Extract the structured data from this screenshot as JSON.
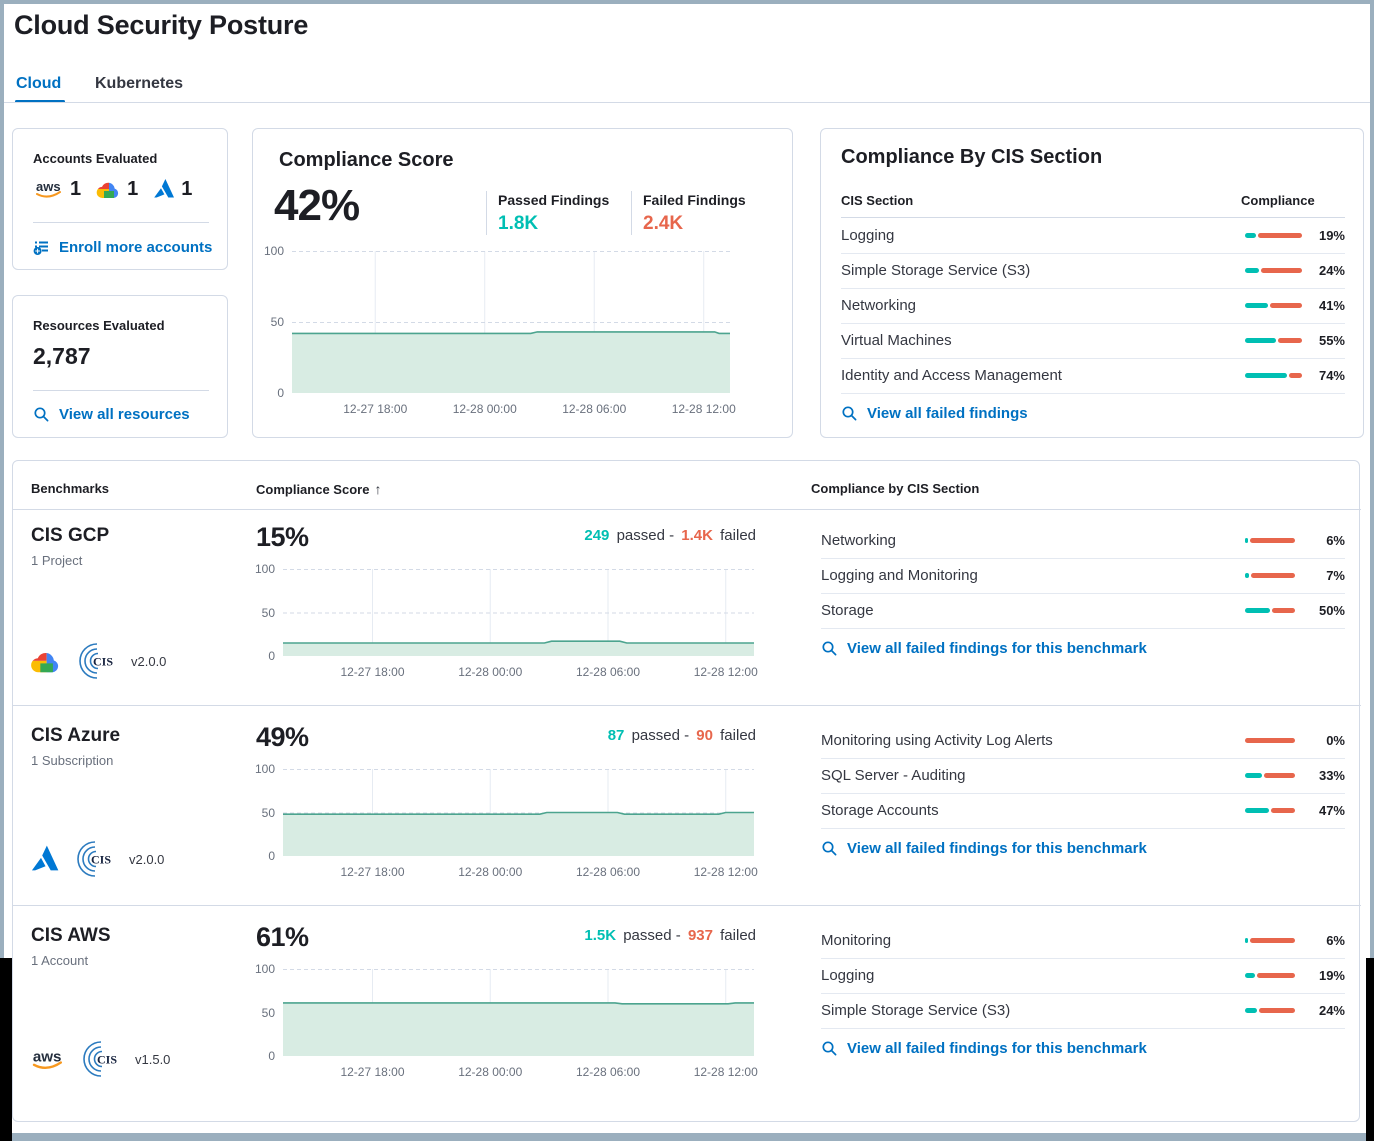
{
  "page": {
    "title": "Cloud Security Posture"
  },
  "tabs": {
    "cloud": "Cloud",
    "kubernetes": "Kubernetes"
  },
  "accounts_card": {
    "title": "Accounts Evaluated",
    "aws_count": "1",
    "gcp_count": "1",
    "azure_count": "1",
    "enroll_link": "Enroll more accounts"
  },
  "resources_card": {
    "title": "Resources Evaluated",
    "count": "2,787",
    "view_link": "View all resources"
  },
  "score_card": {
    "title": "Compliance Score",
    "score": "42%",
    "passed_label": "Passed Findings",
    "passed_value": "1.8K",
    "failed_label": "Failed Findings",
    "failed_value": "2.4K"
  },
  "cis_card": {
    "title": "Compliance By CIS Section",
    "col_section": "CIS Section",
    "col_compliance": "Compliance",
    "rows": [
      {
        "label": "Logging",
        "pct": 19,
        "value": "19%"
      },
      {
        "label": "Simple Storage Service (S3)",
        "pct": 24,
        "value": "24%"
      },
      {
        "label": "Networking",
        "pct": 41,
        "value": "41%"
      },
      {
        "label": "Virtual Machines",
        "pct": 55,
        "value": "55%"
      },
      {
        "label": "Identity and Access Management",
        "pct": 74,
        "value": "74%"
      }
    ],
    "link": "View all failed findings"
  },
  "benchmarks": {
    "col_benchmarks": "Benchmarks",
    "col_score": "Compliance Score",
    "sort_arrow": "↑",
    "col_sections": "Compliance by CIS Section",
    "words": {
      "passed": "passed -",
      "failed": "failed"
    },
    "rows": [
      {
        "name": "CIS GCP",
        "scope": "1 Project",
        "version": "v2.0.0",
        "score": "15%",
        "passed": "249",
        "failed": "1.4K",
        "link": "View all failed findings for this benchmark",
        "sections": [
          {
            "label": "Networking",
            "pct": 6,
            "value": "6%"
          },
          {
            "label": "Logging and Monitoring",
            "pct": 7,
            "value": "7%"
          },
          {
            "label": "Storage",
            "pct": 50,
            "value": "50%"
          }
        ]
      },
      {
        "name": "CIS Azure",
        "scope": "1 Subscription",
        "version": "v2.0.0",
        "score": "49%",
        "passed": "87",
        "failed": "90",
        "link": "View all failed findings for this benchmark",
        "sections": [
          {
            "label": "Monitoring using Activity Log Alerts",
            "pct": 0,
            "value": "0%"
          },
          {
            "label": "SQL Server - Auditing",
            "pct": 33,
            "value": "33%"
          },
          {
            "label": "Storage Accounts",
            "pct": 47,
            "value": "47%"
          }
        ]
      },
      {
        "name": "CIS AWS",
        "scope": "1 Account",
        "version": "v1.5.0",
        "score": "61%",
        "passed": "1.5K",
        "failed": "937",
        "link": "View all failed findings for this benchmark",
        "sections": [
          {
            "label": "Monitoring",
            "pct": 6,
            "value": "6%"
          },
          {
            "label": "Logging",
            "pct": 19,
            "value": "19%"
          },
          {
            "label": "Simple Storage Service (S3)",
            "pct": 24,
            "value": "24%"
          }
        ]
      }
    ]
  },
  "chart_data": [
    {
      "id": "overall-compliance-trend",
      "type": "area",
      "unit": "%",
      "ylim": [
        0,
        100
      ],
      "y_ticks": [
        100,
        50,
        0
      ],
      "x_ticks": [
        "12-27 18:00",
        "12-28 00:00",
        "12-28 06:00",
        "12-28 12:00"
      ],
      "x_tick_pos": [
        0.19,
        0.44,
        0.69,
        0.94
      ],
      "points": [
        [
          0,
          42
        ],
        [
          0.545,
          42
        ],
        [
          0.56,
          43
        ],
        [
          0.965,
          43
        ],
        [
          0.975,
          42
        ],
        [
          1,
          42
        ]
      ]
    },
    {
      "id": "cis-gcp-trend",
      "type": "area",
      "unit": "%",
      "ylim": [
        0,
        100
      ],
      "y_ticks": [
        100,
        50,
        0
      ],
      "x_ticks": [
        "12-27 18:00",
        "12-28 00:00",
        "12-28 06:00",
        "12-28 12:00"
      ],
      "x_tick_pos": [
        0.19,
        0.44,
        0.69,
        0.94
      ],
      "points": [
        [
          0,
          15
        ],
        [
          0.555,
          15
        ],
        [
          0.57,
          17
        ],
        [
          0.715,
          17
        ],
        [
          0.73,
          15
        ],
        [
          1,
          15
        ]
      ]
    },
    {
      "id": "cis-azure-trend",
      "type": "area",
      "unit": "%",
      "ylim": [
        0,
        100
      ],
      "y_ticks": [
        100,
        50,
        0
      ],
      "x_ticks": [
        "12-27 18:00",
        "12-28 00:00",
        "12-28 06:00",
        "12-28 12:00"
      ],
      "x_tick_pos": [
        0.19,
        0.44,
        0.69,
        0.94
      ],
      "points": [
        [
          0,
          48
        ],
        [
          0.545,
          48
        ],
        [
          0.56,
          50
        ],
        [
          0.71,
          50
        ],
        [
          0.725,
          48
        ],
        [
          0.925,
          48
        ],
        [
          0.94,
          50
        ],
        [
          1,
          50
        ]
      ]
    },
    {
      "id": "cis-aws-trend",
      "type": "area",
      "unit": "%",
      "ylim": [
        0,
        100
      ],
      "y_ticks": [
        100,
        50,
        0
      ],
      "x_ticks": [
        "12-27 18:00",
        "12-28 00:00",
        "12-28 06:00",
        "12-28 12:00"
      ],
      "x_tick_pos": [
        0.19,
        0.44,
        0.69,
        0.94
      ],
      "points": [
        [
          0,
          61
        ],
        [
          0.705,
          61
        ],
        [
          0.72,
          60
        ],
        [
          0.945,
          60
        ],
        [
          0.96,
          61
        ],
        [
          1,
          61
        ]
      ]
    }
  ],
  "colors": {
    "teal": "#00BFB3",
    "orange": "#E7664C",
    "link_blue": "#0071C2",
    "chart_line": "#4CA48F",
    "chart_fill": "#D8ECE3",
    "frame": "#9BAFBE"
  }
}
